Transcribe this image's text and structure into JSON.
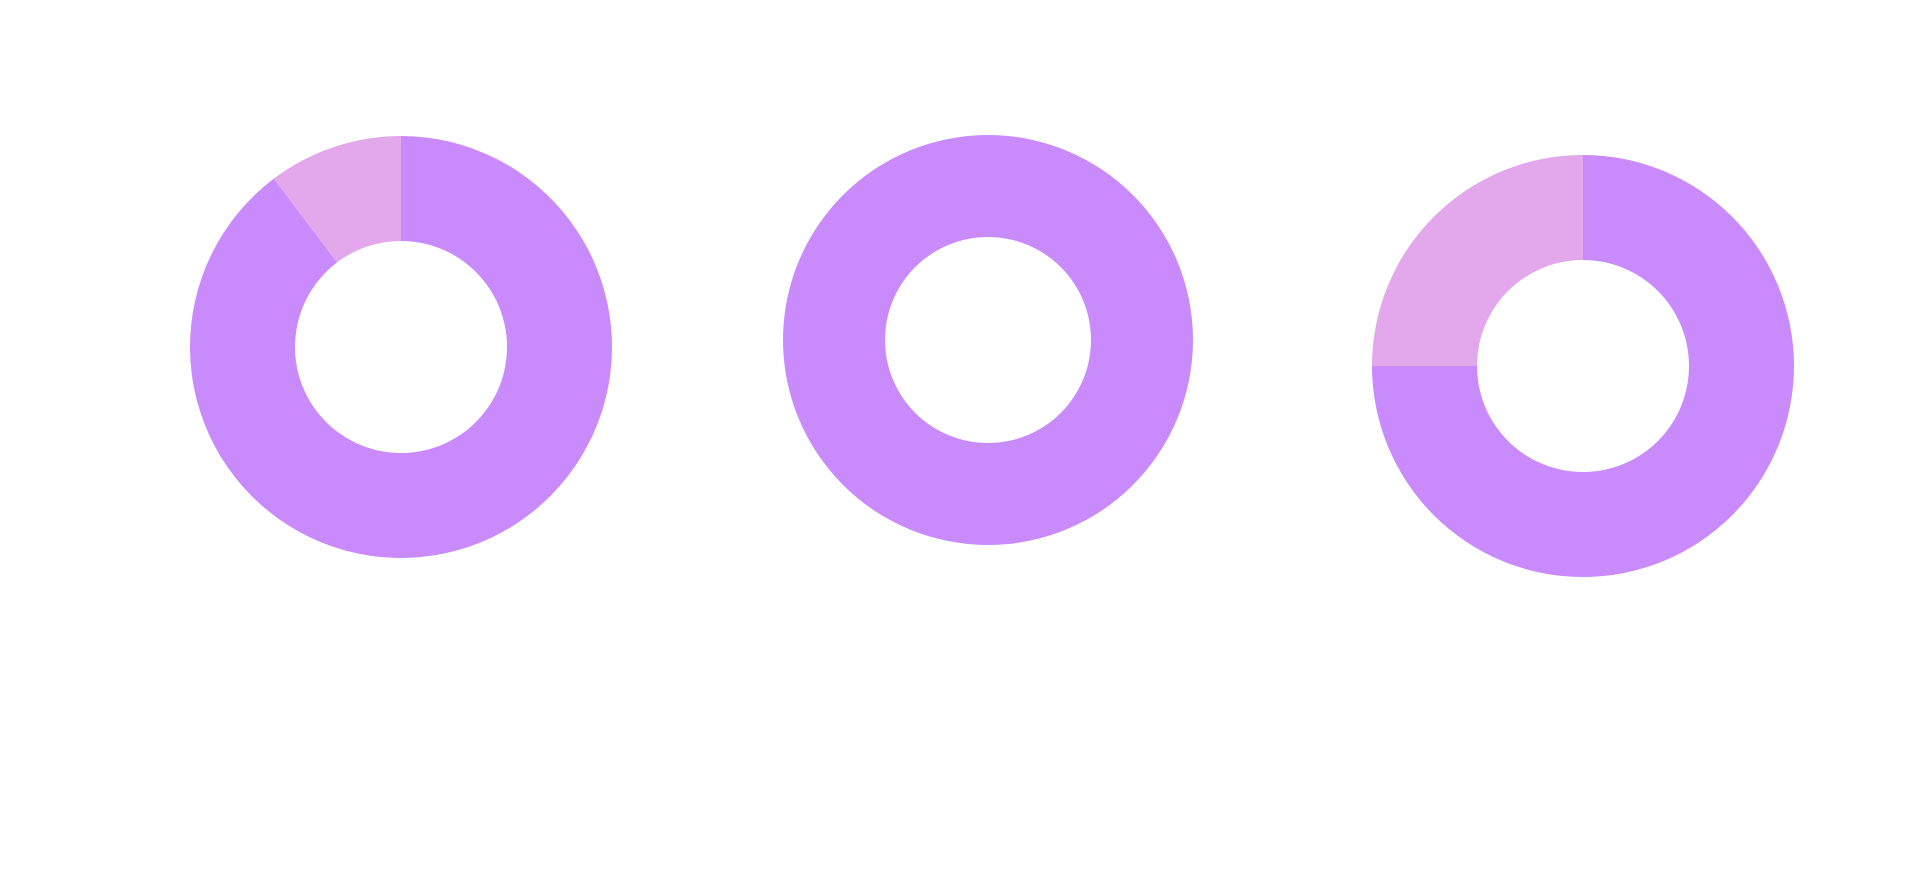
{
  "colors": {
    "primary_slice": "#c98bfb",
    "secondary_slice": "#e3a8eb",
    "background": "#ffffff"
  },
  "chart_data": [
    {
      "type": "pie",
      "donut": true,
      "title": "",
      "slices": [
        {
          "value": 0.897,
          "color_key": "primary_slice"
        },
        {
          "value": 0.103,
          "color_key": "secondary_slice"
        }
      ]
    },
    {
      "type": "pie",
      "donut": true,
      "title": "",
      "slices": [
        {
          "value": 1.0,
          "color_key": "primary_slice"
        }
      ]
    },
    {
      "type": "pie",
      "donut": true,
      "title": "",
      "slices": [
        {
          "value": 0.75,
          "color_key": "primary_slice"
        },
        {
          "value": 0.25,
          "color_key": "secondary_slice"
        }
      ]
    }
  ]
}
